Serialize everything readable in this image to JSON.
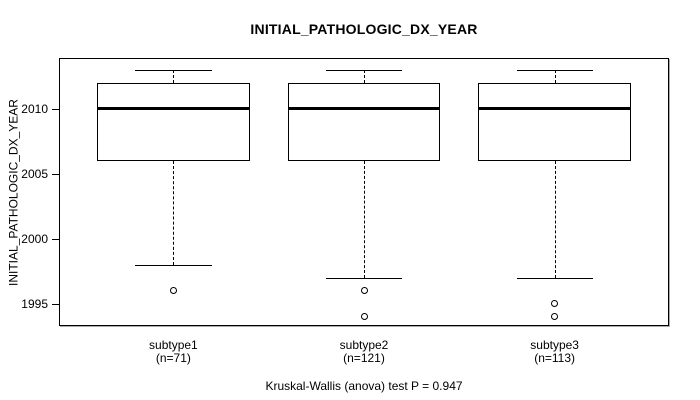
{
  "chart_data": {
    "type": "boxplot",
    "title": "INITIAL_PATHOLOGIC_DX_YEAR",
    "ylabel": "INITIAL_PATHOLOGIC_DX_YEAR",
    "xlabel": "",
    "ylim": [
      1993.3,
      2013.9
    ],
    "yticks": [
      2010,
      2005,
      2000,
      1995
    ],
    "xlim": [
      0.4,
      3.6
    ],
    "grid": false,
    "legend": null,
    "box_width": 0.8,
    "cap_width": 0.4,
    "groups": [
      {
        "label": "subtype1",
        "n_label": "(n=71)",
        "n": 71,
        "position": 1,
        "whisker_low": 1998,
        "q1": 2006,
        "median": 2010,
        "q3": 2012,
        "whisker_high": 2013,
        "outliers": [
          1996
        ]
      },
      {
        "label": "subtype2",
        "n_label": "(n=121)",
        "n": 121,
        "position": 2,
        "whisker_low": 1997,
        "q1": 2006,
        "median": 2010,
        "q3": 2012,
        "whisker_high": 2013,
        "outliers": [
          1996,
          1994
        ]
      },
      {
        "label": "subtype3",
        "n_label": "(n=113)",
        "n": 113,
        "position": 3,
        "whisker_low": 1997,
        "q1": 2006,
        "median": 2010,
        "q3": 2012,
        "whisker_high": 2013,
        "outliers": [
          1995,
          1994
        ]
      }
    ]
  },
  "caption": "Kruskal-Wallis (anova) test P = 0.947",
  "colors": {
    "line": "#000000",
    "box_fill": "#ffffff",
    "background": "#ffffff"
  }
}
